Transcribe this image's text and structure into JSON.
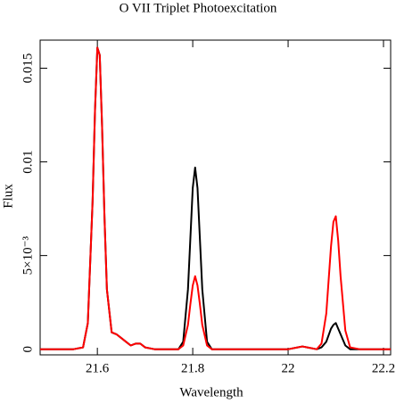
{
  "chart_data": {
    "type": "line",
    "title": "O VII Triplet Photoexcitation",
    "x_label": "Wavelength",
    "y_label": "Flux",
    "x": [
      21.48,
      21.52,
      21.55,
      21.57,
      21.58,
      21.59,
      21.595,
      21.6,
      21.605,
      21.61,
      21.615,
      21.62,
      21.63,
      21.64,
      21.65,
      21.66,
      21.67,
      21.68,
      21.69,
      21.7,
      21.72,
      21.75,
      21.77,
      21.78,
      21.79,
      21.795,
      21.8,
      21.805,
      21.81,
      21.815,
      21.82,
      21.83,
      21.84,
      21.86,
      21.9,
      21.95,
      22,
      22.02,
      22.03,
      22.04,
      22.06,
      22.07,
      22.08,
      22.09,
      22.095,
      22.1,
      22.105,
      22.11,
      22.12,
      22.13,
      22.15,
      22.18,
      22.215
    ],
    "series": [
      {
        "color": "#000000",
        "values": [
          0,
          0,
          0,
          0.0001,
          0.0014,
          0.0079,
          0.0127,
          0.0161,
          0.0157,
          0.0118,
          0.007,
          0.0032,
          0.0009,
          0.0008,
          0.0006,
          0.0004,
          0.0002,
          0.0003,
          0.0003,
          0.0001,
          0,
          0,
          0,
          0.0004,
          0.0032,
          0.0059,
          0.0086,
          0.0097,
          0.0086,
          0.0059,
          0.0032,
          0.0004,
          0,
          0,
          0,
          0,
          0,
          0.0001,
          0.00015,
          0.0001,
          0,
          0.0001,
          0.0004,
          0.0011,
          0.0013,
          0.0014,
          0.0011,
          0.0008,
          0.0002,
          0,
          0,
          0,
          0
        ]
      },
      {
        "color": "#ff0000",
        "values": [
          0,
          0,
          0,
          0.0001,
          0.0014,
          0.0079,
          0.0127,
          0.0161,
          0.0157,
          0.0118,
          0.007,
          0.0032,
          0.0009,
          0.0008,
          0.0006,
          0.0004,
          0.0002,
          0.0003,
          0.0003,
          0.0001,
          0,
          0,
          0,
          0.0002,
          0.0013,
          0.0024,
          0.0034,
          0.0039,
          0.0034,
          0.0024,
          0.0013,
          0.0002,
          0,
          0,
          0,
          0,
          0,
          0.0001,
          0.00015,
          0.0001,
          0,
          0.0003,
          0.0019,
          0.0055,
          0.0068,
          0.0071,
          0.0058,
          0.0039,
          0.001,
          0.0001,
          0,
          0,
          0
        ]
      }
    ],
    "xlim": [
      21.48,
      22.215
    ],
    "ylim": [
      -0.0003,
      0.0165
    ],
    "xticks": [
      21.6,
      21.8,
      22,
      22.2
    ],
    "yticks": [
      0,
      {
        "value": 0.005,
        "label": "5×10⁻³"
      },
      0.01,
      0.015
    ]
  }
}
